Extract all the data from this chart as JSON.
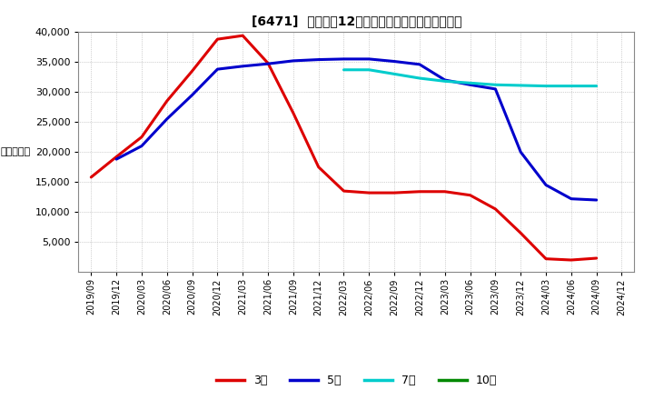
{
  "title": "[6471]  経常利益12か月移動合計の標準偏差の推移",
  "ylabel": "（百万円）",
  "ylim": [
    0,
    40000
  ],
  "yticks": [
    5000,
    10000,
    15000,
    20000,
    25000,
    30000,
    35000,
    40000
  ],
  "background_color": "#ffffff",
  "plot_bg_color": "#ffffff",
  "grid_color": "#aaaaaa",
  "series": {
    "3年": {
      "color": "#dd0000",
      "data": [
        [
          "2019/09",
          15800
        ],
        [
          "2019/12",
          19200
        ],
        [
          "2020/03",
          22500
        ],
        [
          "2020/06",
          28500
        ],
        [
          "2020/09",
          33500
        ],
        [
          "2020/12",
          38800
        ],
        [
          "2021/03",
          39400
        ],
        [
          "2021/06",
          34800
        ],
        [
          "2021/09",
          26500
        ],
        [
          "2021/12",
          17500
        ],
        [
          "2022/03",
          13500
        ],
        [
          "2022/06",
          13200
        ],
        [
          "2022/09",
          13200
        ],
        [
          "2022/12",
          13400
        ],
        [
          "2023/03",
          13400
        ],
        [
          "2023/06",
          12800
        ],
        [
          "2023/09",
          10500
        ],
        [
          "2023/12",
          6500
        ],
        [
          "2024/03",
          2200
        ],
        [
          "2024/06",
          2000
        ],
        [
          "2024/09",
          2300
        ]
      ]
    },
    "5年": {
      "color": "#0000cc",
      "data": [
        [
          "2019/12",
          18800
        ],
        [
          "2020/03",
          21000
        ],
        [
          "2020/06",
          25500
        ],
        [
          "2020/09",
          29500
        ],
        [
          "2020/12",
          33800
        ],
        [
          "2021/03",
          34300
        ],
        [
          "2021/06",
          34700
        ],
        [
          "2021/09",
          35200
        ],
        [
          "2021/12",
          35400
        ],
        [
          "2022/03",
          35500
        ],
        [
          "2022/06",
          35500
        ],
        [
          "2022/09",
          35100
        ],
        [
          "2022/12",
          34600
        ],
        [
          "2023/03",
          32000
        ],
        [
          "2023/06",
          31200
        ],
        [
          "2023/09",
          30500
        ],
        [
          "2023/12",
          20000
        ],
        [
          "2024/03",
          14500
        ],
        [
          "2024/06",
          12200
        ],
        [
          "2024/09",
          12000
        ]
      ]
    },
    "7年": {
      "color": "#00cccc",
      "data": [
        [
          "2022/03",
          33700
        ],
        [
          "2022/06",
          33700
        ],
        [
          "2022/09",
          33000
        ],
        [
          "2022/12",
          32300
        ],
        [
          "2023/03",
          31800
        ],
        [
          "2023/06",
          31500
        ],
        [
          "2023/09",
          31200
        ],
        [
          "2023/12",
          31100
        ],
        [
          "2024/03",
          31000
        ],
        [
          "2024/06",
          31000
        ],
        [
          "2024/09",
          31000
        ]
      ]
    },
    "10年": {
      "color": "#008800",
      "data": []
    }
  },
  "x_labels": [
    "2019/09",
    "2019/12",
    "2020/03",
    "2020/06",
    "2020/09",
    "2020/12",
    "2021/03",
    "2021/06",
    "2021/09",
    "2021/12",
    "2022/03",
    "2022/06",
    "2022/09",
    "2022/12",
    "2023/03",
    "2023/06",
    "2023/09",
    "2023/12",
    "2024/03",
    "2024/06",
    "2024/09",
    "2024/12"
  ],
  "legend_entries": [
    "3年",
    "5年",
    "7年",
    "10年"
  ],
  "legend_colors": [
    "#dd0000",
    "#0000cc",
    "#00cccc",
    "#008800"
  ]
}
